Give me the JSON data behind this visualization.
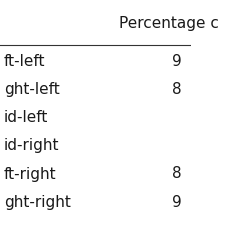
{
  "header": "Percentage c",
  "rows": [
    {
      "label": "ft-left",
      "value": "9"
    },
    {
      "label": "ght-left",
      "value": "8"
    },
    {
      "label": "id-left",
      "value": ""
    },
    {
      "label": "id-right",
      "value": ""
    },
    {
      "label": "ft-right",
      "value": "8"
    },
    {
      "label": "ght-right",
      "value": "9"
    }
  ],
  "bg_color": "#ffffff",
  "text_color": "#1a1a1a",
  "header_fontsize": 11,
  "row_fontsize": 11,
  "line_color": "#333333"
}
